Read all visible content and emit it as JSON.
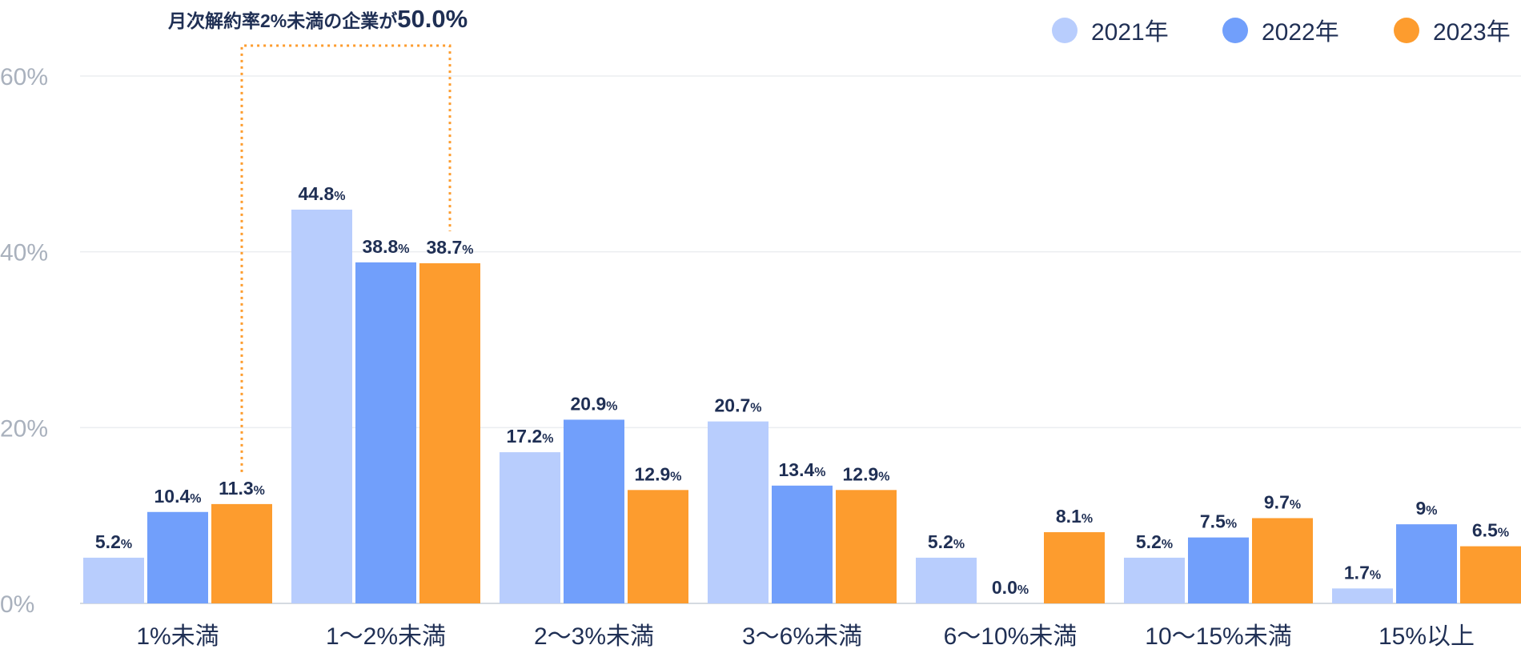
{
  "chart_data": {
    "type": "bar",
    "categories": [
      "1%未満",
      "1〜2%未満",
      "2〜3%未満",
      "3〜6%未満",
      "6〜10%未満",
      "10〜15%未満",
      "15%以上"
    ],
    "series": [
      {
        "name": "2021年",
        "color": "#b8cdfd",
        "values": [
          5.2,
          44.8,
          17.2,
          20.7,
          5.2,
          5.2,
          1.7
        ],
        "labels": [
          "5.2",
          "44.8",
          "17.2",
          "20.7",
          "5.2",
          "5.2",
          "1.7"
        ]
      },
      {
        "name": "2022年",
        "color": "#719ffb",
        "values": [
          10.4,
          38.8,
          20.9,
          13.4,
          0.0,
          7.5,
          9
        ],
        "labels": [
          "10.4",
          "38.8",
          "20.9",
          "13.4",
          "0.0",
          "7.5",
          "9"
        ]
      },
      {
        "name": "2023年",
        "color": "#fd9c2e",
        "values": [
          11.3,
          38.7,
          12.9,
          12.9,
          8.1,
          9.7,
          6.5
        ],
        "labels": [
          "11.3",
          "38.7",
          "12.9",
          "12.9",
          "8.1",
          "9.7",
          "6.5"
        ]
      }
    ],
    "label_suffix": "%",
    "y_ticks": [
      "0%",
      "20%",
      "40%",
      "60%"
    ],
    "y_tick_values": [
      0,
      20,
      40,
      60
    ],
    "ylim": [
      0,
      60
    ],
    "grid": true,
    "legend": "top-right",
    "annotation": {
      "text": "月次解約率2%未満の企業が",
      "value": "50.0%",
      "covers_categories": [
        0,
        1
      ],
      "line_color": "#fd9c2e"
    }
  }
}
